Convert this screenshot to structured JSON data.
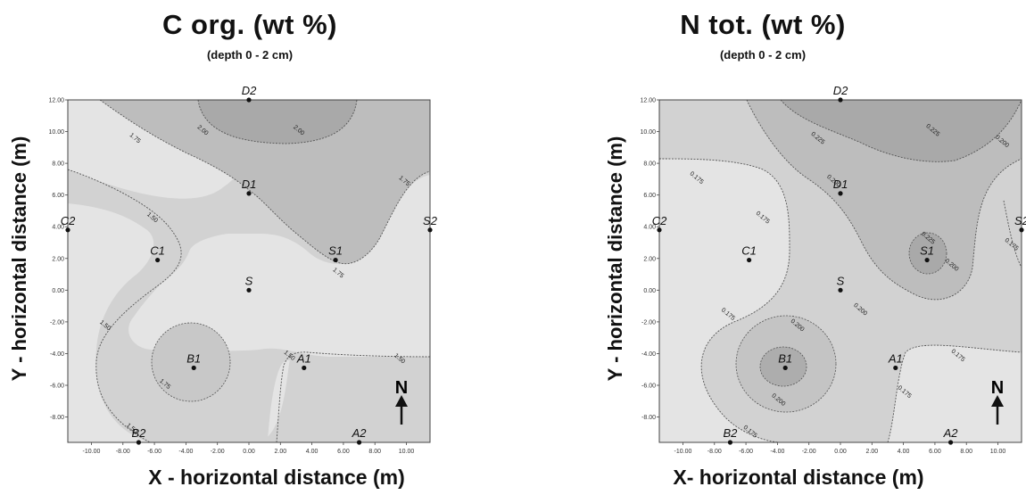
{
  "north_label": "N",
  "chart_data": [
    {
      "type": "contour",
      "title": "C org. (wt %)",
      "subtitle": "(depth 0 - 2 cm)",
      "xlabel": "X - horizontal distance (m)",
      "ylabel": "Y - horizontal distance (m)",
      "xlim": [
        -11.5,
        11.5
      ],
      "ylim": [
        -9.6,
        12.0
      ],
      "xticks": [
        "-10.00",
        "-8.00",
        "-6.00",
        "-4.00",
        "-2.00",
        "0.00",
        "2.00",
        "4.00",
        "6.00",
        "8.00",
        "10.00"
      ],
      "yticks": [
        "12.00",
        "10.00",
        "8.00",
        "6.00",
        "4.00",
        "2.00",
        "0.00",
        "-2.00",
        "-4.00",
        "-6.00",
        "-8.00"
      ],
      "contour_levels": [
        "1.50",
        "1.75",
        "2.00"
      ],
      "contour_labels": [
        {
          "text": "1.75",
          "x": -7.3,
          "y": 9.5
        },
        {
          "text": "2.00",
          "x": -3.0,
          "y": 10.0
        },
        {
          "text": "2.00",
          "x": 3.1,
          "y": 10.0
        },
        {
          "text": "1.75",
          "x": 9.8,
          "y": 6.8
        },
        {
          "text": "1.75",
          "x": 5.6,
          "y": 1.0
        },
        {
          "text": "1.50",
          "x": -6.2,
          "y": 4.5
        },
        {
          "text": "1.50",
          "x": -9.2,
          "y": -2.3
        },
        {
          "text": "1.75",
          "x": -5.4,
          "y": -6.0
        },
        {
          "text": "1.50",
          "x": 2.5,
          "y": -4.2
        },
        {
          "text": "1.50",
          "x": 9.5,
          "y": -4.4
        },
        {
          "text": "1.50",
          "x": -7.5,
          "y": -8.8
        }
      ],
      "sites": [
        {
          "name": "D2",
          "x": 0.0,
          "y": 12.0
        },
        {
          "name": "D1",
          "x": 0.0,
          "y": 6.1
        },
        {
          "name": "C2",
          "x": -11.5,
          "y": 3.8
        },
        {
          "name": "S2",
          "x": 11.5,
          "y": 3.8
        },
        {
          "name": "C1",
          "x": -5.8,
          "y": 1.9
        },
        {
          "name": "S1",
          "x": 5.5,
          "y": 1.9
        },
        {
          "name": "S",
          "x": 0.0,
          "y": 0.0
        },
        {
          "name": "B1",
          "x": -3.5,
          "y": -4.9
        },
        {
          "name": "A1",
          "x": 3.5,
          "y": -4.9
        },
        {
          "name": "B2",
          "x": -7.0,
          "y": -9.6
        },
        {
          "name": "A2",
          "x": 7.0,
          "y": -9.6
        }
      ]
    },
    {
      "type": "contour",
      "title": "N tot. (wt %)",
      "subtitle": "(depth 0 - 2 cm)",
      "xlabel": "X- horizontal distance (m)",
      "ylabel": "Y - horizontal distance (m)",
      "xlim": [
        -11.5,
        11.5
      ],
      "ylim": [
        -9.6,
        12.0
      ],
      "xticks": [
        "-10.00",
        "-8.00",
        "-6.00",
        "-4.00",
        "-2.00",
        "0.00",
        "2.00",
        "4.00",
        "6.00",
        "8.00",
        "10.00"
      ],
      "yticks": [
        "12.00",
        "10.00",
        "8.00",
        "6.00",
        "4.00",
        "2.00",
        "0.00",
        "-2.00",
        "-4.00",
        "-6.00",
        "-8.00"
      ],
      "contour_levels": [
        "0.175",
        "0.200",
        "0.225"
      ],
      "contour_labels": [
        {
          "text": "0.225",
          "x": -1.5,
          "y": 9.5
        },
        {
          "text": "0.225",
          "x": 5.8,
          "y": 10.0
        },
        {
          "text": "0.200",
          "x": 10.2,
          "y": 9.3
        },
        {
          "text": "0.175",
          "x": -9.2,
          "y": 7.0
        },
        {
          "text": "0.200",
          "x": -0.5,
          "y": 6.8
        },
        {
          "text": "0.175",
          "x": -5.0,
          "y": 4.5
        },
        {
          "text": "0.175",
          "x": 10.8,
          "y": 2.8
        },
        {
          "text": "0.200",
          "x": 7.0,
          "y": 1.5
        },
        {
          "text": "0.225",
          "x": 5.5,
          "y": 3.2
        },
        {
          "text": "0.200",
          "x": 1.2,
          "y": -1.3
        },
        {
          "text": "0.175",
          "x": -7.2,
          "y": -1.6
        },
        {
          "text": "0.200",
          "x": -2.8,
          "y": -2.3
        },
        {
          "text": "0.175",
          "x": 7.4,
          "y": -4.2
        },
        {
          "text": "0.175",
          "x": 4.0,
          "y": -6.5
        },
        {
          "text": "0.200",
          "x": -4.0,
          "y": -7.0
        },
        {
          "text": "0.175",
          "x": -5.8,
          "y": -9.0
        }
      ],
      "sites": [
        {
          "name": "D2",
          "x": 0.0,
          "y": 12.0
        },
        {
          "name": "D1",
          "x": 0.0,
          "y": 6.1
        },
        {
          "name": "C2",
          "x": -11.5,
          "y": 3.8
        },
        {
          "name": "S2",
          "x": 11.5,
          "y": 3.8
        },
        {
          "name": "C1",
          "x": -5.8,
          "y": 1.9
        },
        {
          "name": "S1",
          "x": 5.5,
          "y": 1.9
        },
        {
          "name": "S",
          "x": 0.0,
          "y": 0.0
        },
        {
          "name": "B1",
          "x": -3.5,
          "y": -4.9
        },
        {
          "name": "A1",
          "x": 3.5,
          "y": -4.9
        },
        {
          "name": "B2",
          "x": -7.0,
          "y": -9.6
        },
        {
          "name": "A2",
          "x": 7.0,
          "y": -9.6
        }
      ]
    }
  ]
}
